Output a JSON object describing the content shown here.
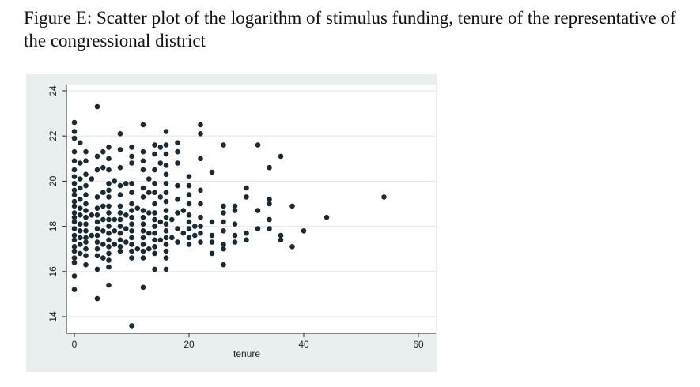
{
  "figure": {
    "caption": "Figure E: Scatter plot of the logarithm of stimulus funding, tenure of the representative of the congressional district"
  },
  "chart_data": {
    "type": "scatter",
    "title": "",
    "xlabel": "tenure",
    "ylabel": "",
    "xlim": [
      0,
      60
    ],
    "ylim": [
      13.5,
      24.5
    ],
    "xticks": [
      0,
      20,
      40,
      60
    ],
    "yticks": [
      14,
      16,
      18,
      20,
      22,
      24
    ],
    "grid": true,
    "marker_color": "#1a2a32",
    "background_color": "#e9eeee",
    "plot_background_color": "#ffffff",
    "grid_color": "#dfe6e6",
    "points": [
      [
        0,
        22.6
      ],
      [
        0,
        22.2
      ],
      [
        0,
        21.9
      ],
      [
        0,
        21.3
      ],
      [
        0,
        20.9
      ],
      [
        0,
        20.5
      ],
      [
        0,
        20.2
      ],
      [
        0,
        19.9
      ],
      [
        0,
        19.6
      ],
      [
        0,
        19.4
      ],
      [
        0,
        19.1
      ],
      [
        0,
        18.9
      ],
      [
        0,
        18.6
      ],
      [
        0,
        18.4
      ],
      [
        0,
        18.2
      ],
      [
        0,
        17.9
      ],
      [
        0,
        17.6
      ],
      [
        0,
        17.4
      ],
      [
        0,
        17.1
      ],
      [
        0,
        16.9
      ],
      [
        0,
        16.6
      ],
      [
        0,
        16.4
      ],
      [
        0,
        15.8
      ],
      [
        0,
        15.2
      ],
      [
        1,
        21.7
      ],
      [
        1,
        20.8
      ],
      [
        1,
        20.1
      ],
      [
        1,
        19.7
      ],
      [
        1,
        19.2
      ],
      [
        1,
        18.8
      ],
      [
        1,
        18.5
      ],
      [
        1,
        18.1
      ],
      [
        1,
        17.8
      ],
      [
        1,
        17.5
      ],
      [
        1,
        17.2
      ],
      [
        1,
        16.8
      ],
      [
        2,
        21.3
      ],
      [
        2,
        20.9
      ],
      [
        2,
        20.3
      ],
      [
        2,
        19.8
      ],
      [
        2,
        19.4
      ],
      [
        2,
        19.0
      ],
      [
        2,
        18.7
      ],
      [
        2,
        18.4
      ],
      [
        2,
        18.1
      ],
      [
        2,
        17.8
      ],
      [
        2,
        17.5
      ],
      [
        2,
        17.3
      ],
      [
        2,
        17.0
      ],
      [
        2,
        16.7
      ],
      [
        2,
        16.3
      ],
      [
        3,
        20.1
      ],
      [
        3,
        18.5
      ],
      [
        3,
        17.6
      ],
      [
        4,
        23.3
      ],
      [
        4,
        21.1
      ],
      [
        4,
        20.5
      ],
      [
        4,
        19.3
      ],
      [
        4,
        18.8
      ],
      [
        4,
        18.5
      ],
      [
        4,
        18.2
      ],
      [
        4,
        17.9
      ],
      [
        4,
        17.6
      ],
      [
        4,
        17.3
      ],
      [
        4,
        17.0
      ],
      [
        4,
        16.7
      ],
      [
        4,
        16.1
      ],
      [
        4,
        14.8
      ],
      [
        5,
        21.3
      ],
      [
        5,
        20.6
      ],
      [
        5,
        19.5
      ],
      [
        5,
        18.9
      ],
      [
        5,
        18.3
      ],
      [
        5,
        17.8
      ],
      [
        5,
        17.2
      ],
      [
        5,
        16.6
      ],
      [
        6,
        21.5
      ],
      [
        6,
        21.0
      ],
      [
        6,
        20.5
      ],
      [
        6,
        19.9
      ],
      [
        6,
        19.6
      ],
      [
        6,
        19.3
      ],
      [
        6,
        18.9
      ],
      [
        6,
        18.6
      ],
      [
        6,
        18.3
      ],
      [
        6,
        18.0
      ],
      [
        6,
        17.7
      ],
      [
        6,
        17.4
      ],
      [
        6,
        17.1
      ],
      [
        6,
        16.8
      ],
      [
        6,
        16.5
      ],
      [
        6,
        16.2
      ],
      [
        6,
        15.4
      ],
      [
        7,
        20.0
      ],
      [
        7,
        18.3
      ],
      [
        7,
        17.8
      ],
      [
        7,
        17.2
      ],
      [
        8,
        22.1
      ],
      [
        8,
        21.4
      ],
      [
        8,
        20.6
      ],
      [
        8,
        19.8
      ],
      [
        8,
        19.4
      ],
      [
        8,
        18.9
      ],
      [
        8,
        18.6
      ],
      [
        8,
        18.3
      ],
      [
        8,
        18.0
      ],
      [
        8,
        17.7
      ],
      [
        8,
        17.4
      ],
      [
        8,
        17.1
      ],
      [
        8,
        16.9
      ],
      [
        9,
        19.9
      ],
      [
        9,
        18.5
      ],
      [
        9,
        17.9
      ],
      [
        9,
        17.3
      ],
      [
        10,
        21.5
      ],
      [
        10,
        21.1
      ],
      [
        10,
        20.8
      ],
      [
        10,
        19.9
      ],
      [
        10,
        19.5
      ],
      [
        10,
        19.0
      ],
      [
        10,
        18.7
      ],
      [
        10,
        18.4
      ],
      [
        10,
        18.1
      ],
      [
        10,
        17.8
      ],
      [
        10,
        17.5
      ],
      [
        10,
        17.2
      ],
      [
        10,
        16.9
      ],
      [
        10,
        16.6
      ],
      [
        10,
        13.6
      ],
      [
        11,
        18.8
      ],
      [
        11,
        17.0
      ],
      [
        12,
        22.5
      ],
      [
        12,
        21.3
      ],
      [
        12,
        20.9
      ],
      [
        12,
        20.5
      ],
      [
        12,
        19.7
      ],
      [
        12,
        19.3
      ],
      [
        12,
        18.7
      ],
      [
        12,
        18.4
      ],
      [
        12,
        18.1
      ],
      [
        12,
        17.8
      ],
      [
        12,
        17.5
      ],
      [
        12,
        17.2
      ],
      [
        12,
        16.9
      ],
      [
        12,
        16.6
      ],
      [
        12,
        15.3
      ],
      [
        13,
        20.1
      ],
      [
        13,
        19.5
      ],
      [
        13,
        18.6
      ],
      [
        13,
        17.7
      ],
      [
        13,
        17.0
      ],
      [
        14,
        21.6
      ],
      [
        14,
        21.2
      ],
      [
        14,
        20.5
      ],
      [
        14,
        19.9
      ],
      [
        14,
        19.5
      ],
      [
        14,
        19.0
      ],
      [
        14,
        18.6
      ],
      [
        14,
        18.3
      ],
      [
        14,
        18.0
      ],
      [
        14,
        17.7
      ],
      [
        14,
        17.4
      ],
      [
        14,
        17.1
      ],
      [
        14,
        16.8
      ],
      [
        14,
        16.1
      ],
      [
        15,
        21.5
      ],
      [
        15,
        20.8
      ],
      [
        15,
        19.3
      ],
      [
        15,
        18.2
      ],
      [
        15,
        17.4
      ],
      [
        16,
        22.2
      ],
      [
        16,
        21.6
      ],
      [
        16,
        21.2
      ],
      [
        16,
        20.7
      ],
      [
        16,
        20.3
      ],
      [
        16,
        19.9
      ],
      [
        16,
        19.5
      ],
      [
        16,
        19.1
      ],
      [
        16,
        18.7
      ],
      [
        16,
        18.4
      ],
      [
        16,
        18.1
      ],
      [
        16,
        17.8
      ],
      [
        16,
        17.5
      ],
      [
        16,
        17.2
      ],
      [
        16,
        16.9
      ],
      [
        16,
        16.6
      ],
      [
        16,
        16.1
      ],
      [
        17,
        18.3
      ],
      [
        17,
        17.5
      ],
      [
        18,
        21.7
      ],
      [
        18,
        21.3
      ],
      [
        18,
        20.8
      ],
      [
        18,
        19.8
      ],
      [
        18,
        19.2
      ],
      [
        18,
        18.6
      ],
      [
        18,
        17.9
      ],
      [
        18,
        17.3
      ],
      [
        19,
        18.7
      ],
      [
        19,
        17.7
      ],
      [
        20,
        20.2
      ],
      [
        20,
        19.8
      ],
      [
        20,
        19.4
      ],
      [
        20,
        19.0
      ],
      [
        20,
        18.5
      ],
      [
        20,
        18.2
      ],
      [
        20,
        17.9
      ],
      [
        20,
        17.5
      ],
      [
        20,
        17.2
      ],
      [
        21,
        18.0
      ],
      [
        21,
        17.6
      ],
      [
        22,
        22.5
      ],
      [
        22,
        22.1
      ],
      [
        22,
        21.0
      ],
      [
        22,
        19.6
      ],
      [
        22,
        19.0
      ],
      [
        22,
        18.4
      ],
      [
        22,
        18.0
      ],
      [
        22,
        17.7
      ],
      [
        22,
        17.3
      ],
      [
        24,
        20.4
      ],
      [
        24,
        18.2
      ],
      [
        24,
        17.6
      ],
      [
        24,
        17.3
      ],
      [
        24,
        16.8
      ],
      [
        26,
        21.6
      ],
      [
        26,
        18.9
      ],
      [
        26,
        18.6
      ],
      [
        26,
        18.2
      ],
      [
        26,
        17.8
      ],
      [
        26,
        17.2
      ],
      [
        26,
        17.0
      ],
      [
        26,
        16.3
      ],
      [
        28,
        18.9
      ],
      [
        28,
        18.7
      ],
      [
        28,
        18.1
      ],
      [
        28,
        17.6
      ],
      [
        28,
        17.3
      ],
      [
        30,
        19.7
      ],
      [
        30,
        19.3
      ],
      [
        30,
        17.7
      ],
      [
        30,
        17.4
      ],
      [
        32,
        21.6
      ],
      [
        32,
        18.7
      ],
      [
        32,
        17.9
      ],
      [
        34,
        20.6
      ],
      [
        34,
        19.2
      ],
      [
        34,
        19.0
      ],
      [
        34,
        18.3
      ],
      [
        34,
        17.9
      ],
      [
        36,
        21.1
      ],
      [
        36,
        17.6
      ],
      [
        36,
        17.4
      ],
      [
        38,
        18.9
      ],
      [
        38,
        17.1
      ],
      [
        40,
        17.8
      ],
      [
        44,
        18.4
      ],
      [
        54,
        19.3
      ]
    ]
  }
}
